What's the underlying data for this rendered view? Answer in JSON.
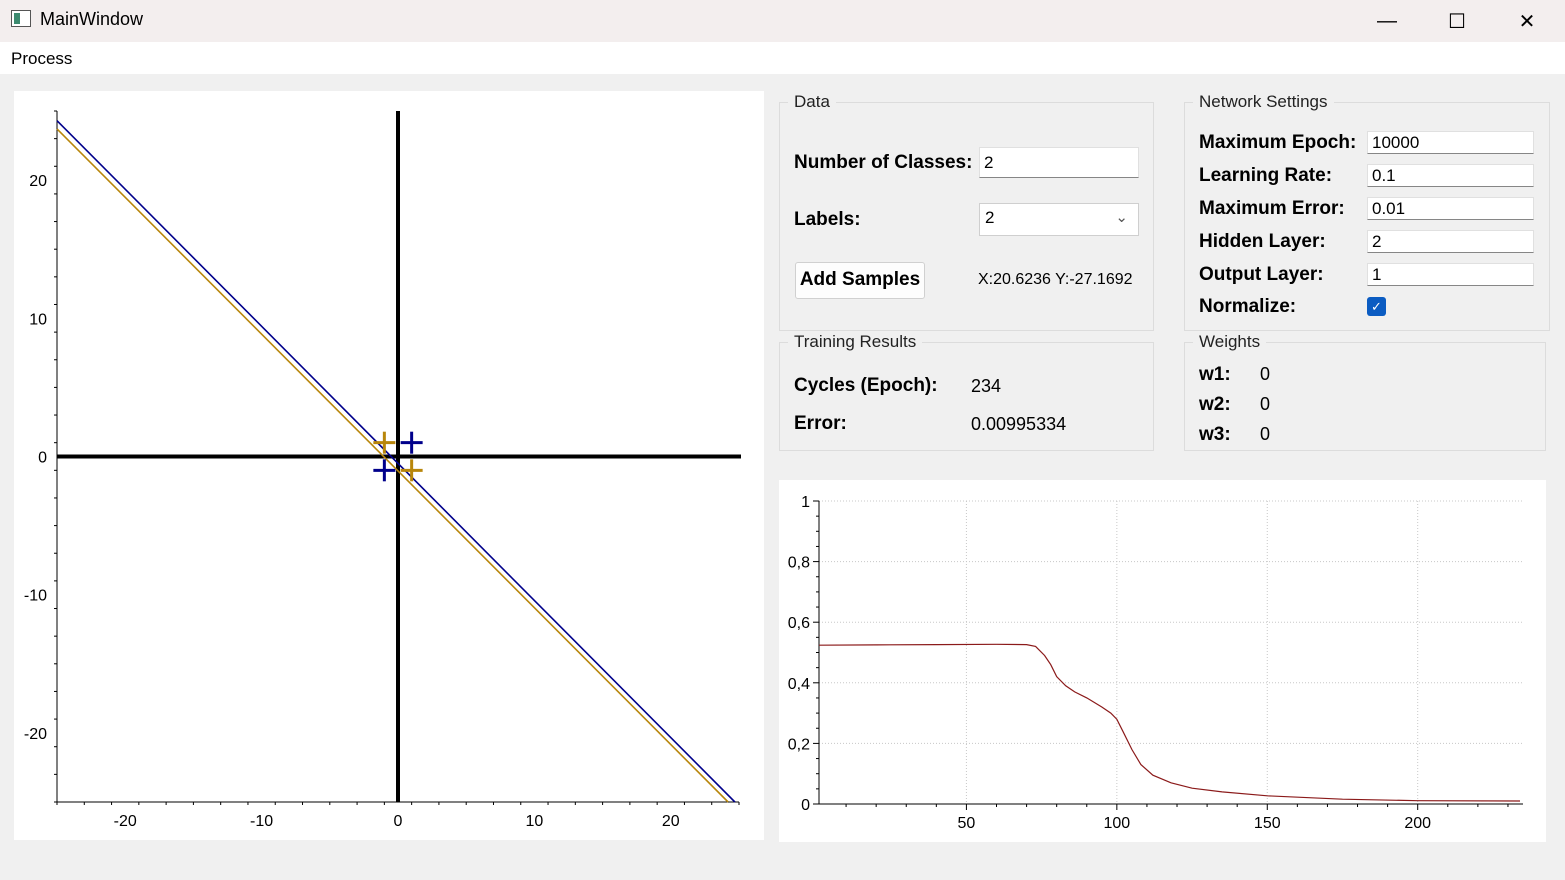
{
  "window": {
    "title": "MainWindow",
    "minimize_glyph": "—",
    "maximize_glyph": "☐",
    "close_glyph": "✕",
    "app_icon": "window-app-icon"
  },
  "menu": {
    "items": [
      "Process"
    ]
  },
  "scatter_plot": {
    "chart_data": {
      "type": "scatter",
      "xlim": [
        -25,
        25
      ],
      "ylim": [
        -25,
        25
      ],
      "x_ticks": [
        "-20",
        "-10",
        "0",
        "10",
        "20"
      ],
      "y_ticks": [
        "20",
        "10",
        "0",
        "-10",
        "-20"
      ],
      "points": [
        {
          "x": -1,
          "y": 1,
          "class": 1,
          "color": "#b8860b"
        },
        {
          "x": 1,
          "y": -1,
          "class": 1,
          "color": "#b8860b"
        },
        {
          "x": 1,
          "y": 1,
          "class": 2,
          "color": "#00008b"
        },
        {
          "x": -1,
          "y": -1,
          "class": 2,
          "color": "#00008b"
        }
      ],
      "lines": [
        {
          "color": "#00008b",
          "from": [
            -25,
            24.3
          ],
          "to": [
            24.7,
            -25
          ]
        },
        {
          "color": "#b8860b",
          "from": [
            -25,
            23.7
          ],
          "to": [
            24.2,
            -25
          ]
        }
      ]
    }
  },
  "data_group": {
    "title": "Data",
    "classes_label": "Number of Classes:",
    "classes_value": "2",
    "labels_label": "Labels:",
    "labels_selected": "2",
    "add_samples_label": "Add Samples",
    "coords_text": "X:20.6236 Y:-27.1692"
  },
  "network_group": {
    "title": "Network Settings",
    "fields": [
      {
        "label": "Maximum Epoch:",
        "value": "10000"
      },
      {
        "label": "Learning Rate:",
        "value": "0.1"
      },
      {
        "label": "Maximum Error:",
        "value": "0.01"
      },
      {
        "label": "Hidden Layer:",
        "value": "2"
      },
      {
        "label": "Output Layer:",
        "value": "1"
      }
    ],
    "normalize_label": "Normalize:",
    "normalize_checked": true
  },
  "training_group": {
    "title": "Training Results",
    "cycles_label": "Cycles (Epoch):",
    "cycles_value": "234",
    "error_label": "Error:",
    "error_value": "0.00995334"
  },
  "weights_group": {
    "title": "Weights",
    "items": [
      {
        "label": "w1:",
        "value": "0"
      },
      {
        "label": "w2:",
        "value": "0"
      },
      {
        "label": "w3:",
        "value": "0"
      }
    ]
  },
  "error_plot": {
    "chart_data": {
      "type": "line",
      "xlim": [
        1,
        235
      ],
      "ylim": [
        0,
        1
      ],
      "x_ticks": [
        "50",
        "100",
        "150",
        "200"
      ],
      "y_ticks": [
        "1",
        "0,8",
        "0,6",
        "0,4",
        "0,2",
        "0"
      ],
      "series": [
        {
          "color": "#8b1a1a",
          "x": [
            1,
            20,
            40,
            60,
            70,
            73,
            76,
            78,
            80,
            83,
            86,
            90,
            95,
            98,
            100,
            102,
            105,
            108,
            112,
            118,
            125,
            135,
            150,
            175,
            200,
            234
          ],
          "y": [
            0.524,
            0.525,
            0.526,
            0.527,
            0.526,
            0.52,
            0.49,
            0.46,
            0.42,
            0.39,
            0.37,
            0.35,
            0.32,
            0.3,
            0.28,
            0.24,
            0.18,
            0.13,
            0.095,
            0.07,
            0.052,
            0.04,
            0.027,
            0.016,
            0.011,
            0.0099
          ]
        }
      ]
    }
  }
}
